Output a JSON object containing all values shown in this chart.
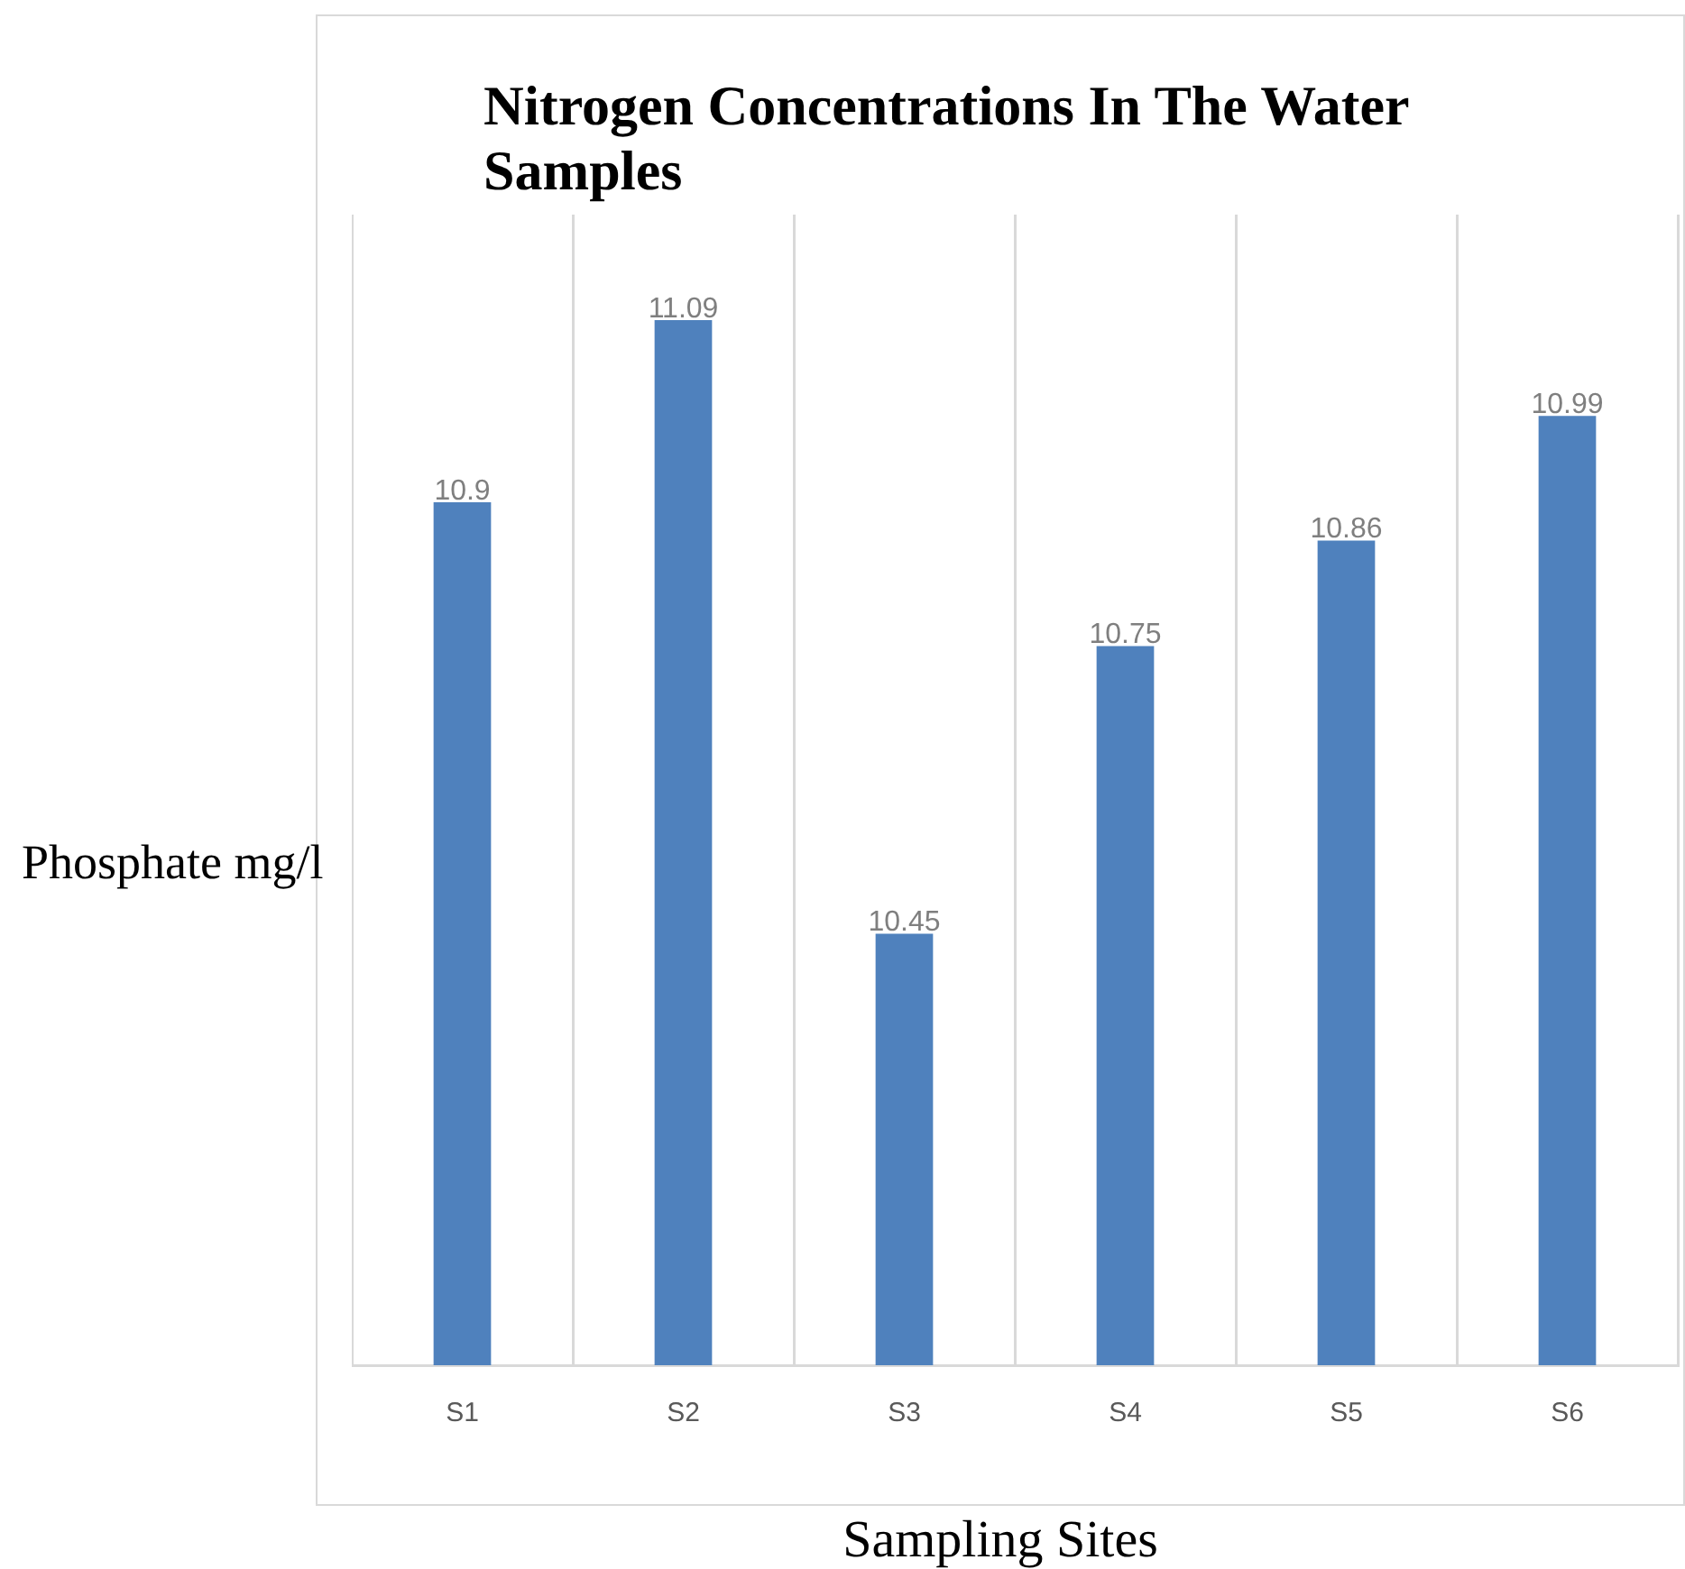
{
  "chart_data": {
    "type": "bar",
    "title": "Nitrogen Concentrations In The Water Samples",
    "xlabel": "Sampling Sites",
    "ylabel": "Phosphate mg/l",
    "categories": [
      "S1",
      "S2",
      "S3",
      "S4",
      "S5",
      "S6"
    ],
    "values": [
      10.9,
      11.09,
      10.45,
      10.75,
      10.86,
      10.99
    ],
    "color": "#4f81bd",
    "ylim": [
      10,
      11.2
    ],
    "tick_labels": "x",
    "grid": "x",
    "data_labels": true,
    "legend": false
  }
}
